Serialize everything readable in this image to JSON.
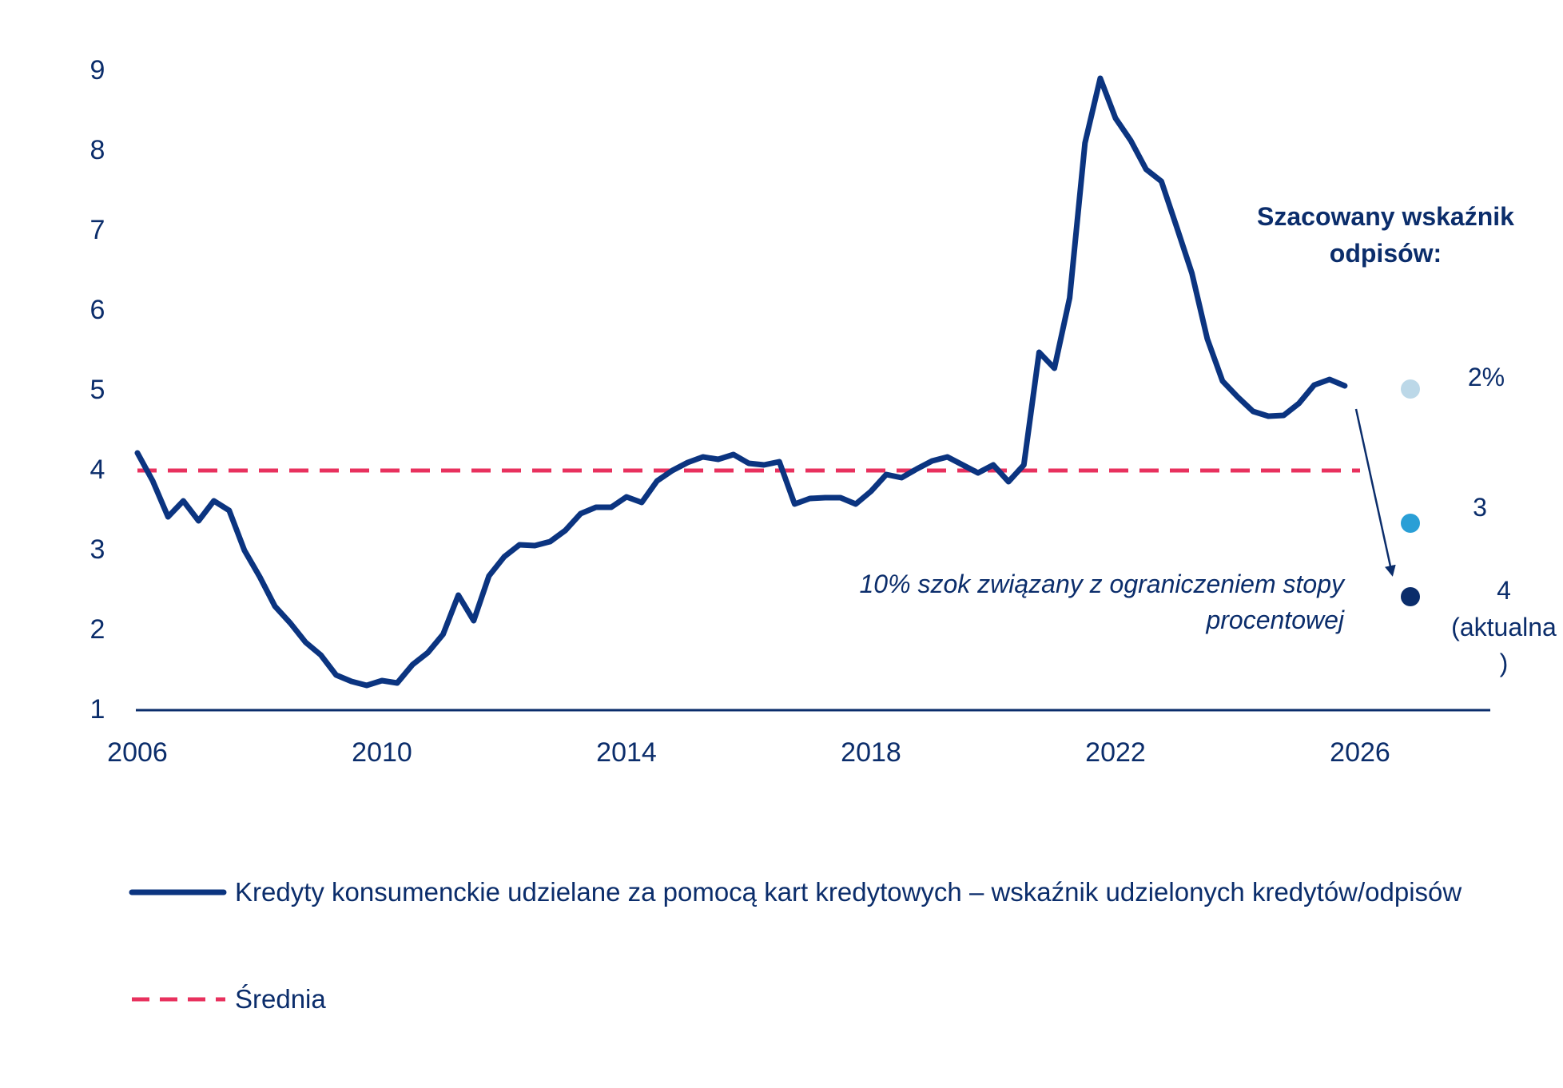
{
  "chart_data": {
    "type": "line",
    "ylim": [
      1,
      9
    ],
    "xlim": [
      2006,
      2028
    ],
    "y_ticks": [
      "1",
      "2",
      "3",
      "4",
      "5",
      "6",
      "7",
      "8",
      "9"
    ],
    "x_ticks": [
      "2006",
      "2010",
      "2014",
      "2018",
      "2022",
      "2026"
    ],
    "grid": false,
    "series": [
      {
        "name": "Kredyty konsumenckie udzielane za pomocą kart kredytowych – wskaźnik udzielonych kredytów/odpisów",
        "color": "#0b3480",
        "style": "solid",
        "x": [
          2006.0,
          2006.25,
          2006.5,
          2006.75,
          2007.0,
          2007.25,
          2007.5,
          2007.75,
          2008.0,
          2008.25,
          2008.5,
          2008.75,
          2009.0,
          2009.25,
          2009.5,
          2009.75,
          2010.0,
          2010.25,
          2010.5,
          2010.75,
          2011.0,
          2011.25,
          2011.5,
          2011.75,
          2012.0,
          2012.25,
          2012.5,
          2012.75,
          2013.0,
          2013.25,
          2013.5,
          2013.75,
          2014.0,
          2014.25,
          2014.5,
          2014.75,
          2015.0,
          2015.25,
          2015.5,
          2015.75,
          2016.0,
          2016.25,
          2016.5,
          2016.75,
          2017.0,
          2017.25,
          2017.5,
          2017.75,
          2018.0,
          2018.25,
          2018.5,
          2018.75,
          2019.0,
          2019.25,
          2019.5,
          2019.75,
          2020.0,
          2020.25,
          2020.5,
          2020.75,
          2021.0,
          2021.25,
          2021.5,
          2021.75,
          2022.0,
          2022.25,
          2022.5,
          2022.75,
          2023.0,
          2023.25,
          2023.5,
          2023.75,
          2024.0,
          2024.25,
          2024.5,
          2024.75,
          2025.0,
          2025.25,
          2025.5,
          2025.75
        ],
        "values": [
          4.2,
          3.85,
          3.4,
          3.6,
          3.35,
          3.6,
          3.48,
          2.98,
          2.65,
          2.28,
          2.07,
          1.83,
          1.67,
          1.42,
          1.34,
          1.29,
          1.35,
          1.32,
          1.55,
          1.7,
          1.93,
          2.42,
          2.1,
          2.66,
          2.9,
          3.05,
          3.04,
          3.09,
          3.23,
          3.44,
          3.52,
          3.52,
          3.65,
          3.58,
          3.85,
          3.98,
          4.08,
          4.15,
          4.12,
          4.18,
          4.07,
          4.05,
          4.09,
          3.56,
          3.63,
          3.64,
          3.64,
          3.56,
          3.72,
          3.93,
          3.89,
          4.0,
          4.1,
          4.15,
          4.05,
          3.95,
          4.05,
          3.84,
          4.05,
          5.46,
          5.26,
          6.14,
          8.08,
          8.89,
          8.39,
          8.11,
          7.75,
          7.6,
          7.03,
          6.45,
          5.63,
          5.1,
          4.9,
          4.72,
          4.66,
          4.67,
          4.82,
          5.05,
          5.12,
          5.04
        ]
      },
      {
        "name": "Średnia",
        "color": "#e8315e",
        "style": "dashed",
        "x": [
          2006.0,
          2026.0
        ],
        "values": [
          3.98,
          3.98
        ]
      }
    ],
    "annotations": {
      "title_line1": "Szacowany wskaźnik",
      "title_line2": "odpisów:",
      "shock_line1": "10% szok związany z ograniczeniem stopy",
      "shock_line2": "procentowej",
      "scenarios": [
        {
          "label": "2%",
          "x": 2026.95,
          "value": 5.0,
          "color": "#bcd8e8"
        },
        {
          "label": "3",
          "x": 2026.95,
          "value": 3.32,
          "color": "#2a9fd6"
        },
        {
          "label_lines": [
            "4",
            "(aktualna",
            ")"
          ],
          "x": 2026.95,
          "value": 2.4,
          "color": "#0b2d6b"
        }
      ]
    },
    "legend": {
      "placement": "bottom-left",
      "entries": [
        "Kredyty konsumenckie udzielane za pomocą kart kredytowych – wskaźnik udzielonych kredytów/odpisów",
        "Średnia"
      ]
    }
  }
}
